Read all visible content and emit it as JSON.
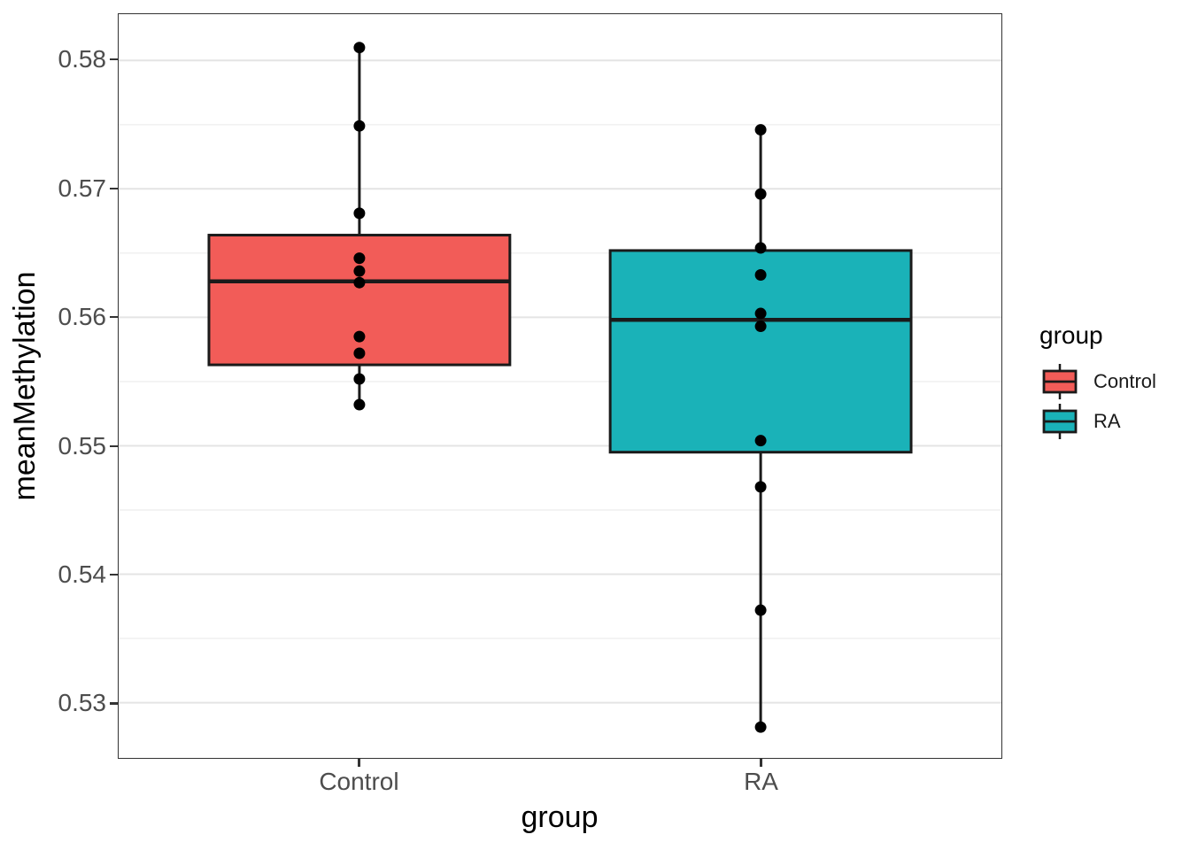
{
  "chart_data": {
    "type": "boxplot",
    "xlabel": "group",
    "ylabel": "meanMethylation",
    "categories": [
      "Control",
      "RA"
    ],
    "ylim": [
      0.5257,
      0.5836
    ],
    "yticks": [
      {
        "value": 0.58,
        "label": "0.58"
      },
      {
        "value": 0.57,
        "label": "0.57"
      },
      {
        "value": 0.56,
        "label": "0.56"
      },
      {
        "value": 0.55,
        "label": "0.55"
      },
      {
        "value": 0.54,
        "label": "0.54"
      },
      {
        "value": 0.53,
        "label": "0.53"
      }
    ],
    "yticks_minor": [
      0.575,
      0.565,
      0.555,
      0.545,
      0.535
    ],
    "grid": "on",
    "legend_position": "right",
    "legend": {
      "title": "group",
      "items": [
        {
          "label": "Control",
          "color": "#F25C58"
        },
        {
          "label": "RA",
          "color": "#1AB2B8"
        }
      ]
    },
    "series": [
      {
        "name": "Control",
        "fill": "#F25C58",
        "box": {
          "whisker_low": 0.5532,
          "q1": 0.5563,
          "median": 0.5628,
          "q3": 0.5664,
          "whisker_high": 0.581
        },
        "points": [
          0.581,
          0.5749,
          0.5681,
          0.5646,
          0.5636,
          0.5627,
          0.5585,
          0.5572,
          0.5552,
          0.5532
        ]
      },
      {
        "name": "RA",
        "fill": "#1AB2B8",
        "box": {
          "whisker_low": 0.5281,
          "q1": 0.5495,
          "median": 0.5598,
          "q3": 0.5652,
          "whisker_high": 0.5746
        },
        "points": [
          0.5746,
          0.5696,
          0.5654,
          0.5633,
          0.5603,
          0.5593,
          0.5504,
          0.5468,
          0.5372,
          0.5281
        ]
      }
    ],
    "styles": {
      "point_color": "#000000",
      "box_stroke": "#1a1a1a",
      "grid_major": "#e4e4e4",
      "grid_minor": "#efefef",
      "axis_text": "#4d4d4d",
      "panel_border": "#333333"
    }
  }
}
